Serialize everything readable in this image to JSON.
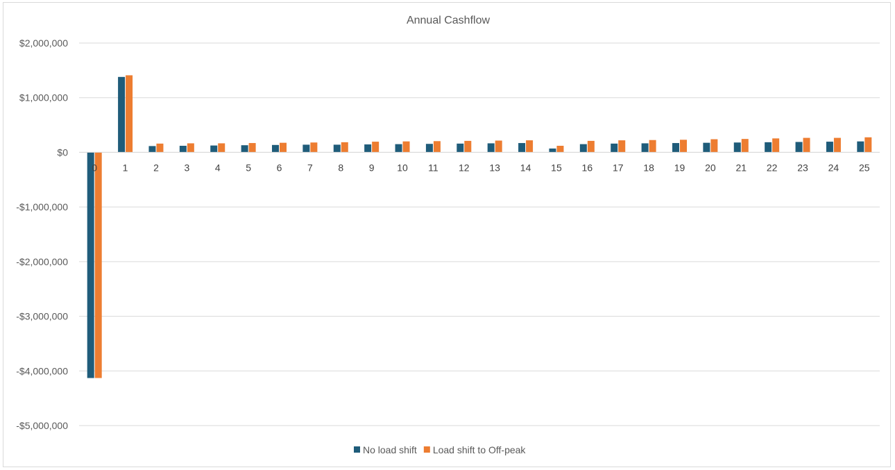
{
  "chart_data": {
    "type": "bar",
    "title": "Annual Cashflow",
    "xlabel": "",
    "ylabel": "",
    "ylim": [
      -5000000,
      2000000
    ],
    "yticks": [
      2000000,
      1000000,
      0,
      -1000000,
      -2000000,
      -3000000,
      -4000000,
      -5000000
    ],
    "ytick_labels": [
      "$2,000,000",
      "$1,000,000",
      "$0",
      "-$1,000,000",
      "-$2,000,000",
      "-$3,000,000",
      "-$4,000,000",
      "-$5,000,000"
    ],
    "categories": [
      "0",
      "1",
      "2",
      "3",
      "4",
      "5",
      "6",
      "7",
      "8",
      "9",
      "10",
      "11",
      "12",
      "13",
      "14",
      "15",
      "16",
      "17",
      "18",
      "19",
      "20",
      "21",
      "22",
      "23",
      "24",
      "25"
    ],
    "grid": true,
    "legend_position": "bottom",
    "series": [
      {
        "name": "No load shift",
        "color": "#1f5c7a",
        "values": [
          -4130000,
          1380000,
          115000,
          120000,
          125000,
          130000,
          135000,
          140000,
          140000,
          145000,
          150000,
          155000,
          160000,
          165000,
          170000,
          70000,
          150000,
          160000,
          165000,
          170000,
          175000,
          180000,
          185000,
          190000,
          195000,
          200000
        ]
      },
      {
        "name": "Load shift to Off-peak",
        "color": "#ed7d31",
        "values": [
          -4130000,
          1410000,
          160000,
          165000,
          165000,
          170000,
          175000,
          180000,
          185000,
          195000,
          200000,
          205000,
          210000,
          215000,
          220000,
          120000,
          210000,
          220000,
          225000,
          230000,
          240000,
          245000,
          255000,
          265000,
          265000,
          275000
        ]
      }
    ]
  }
}
